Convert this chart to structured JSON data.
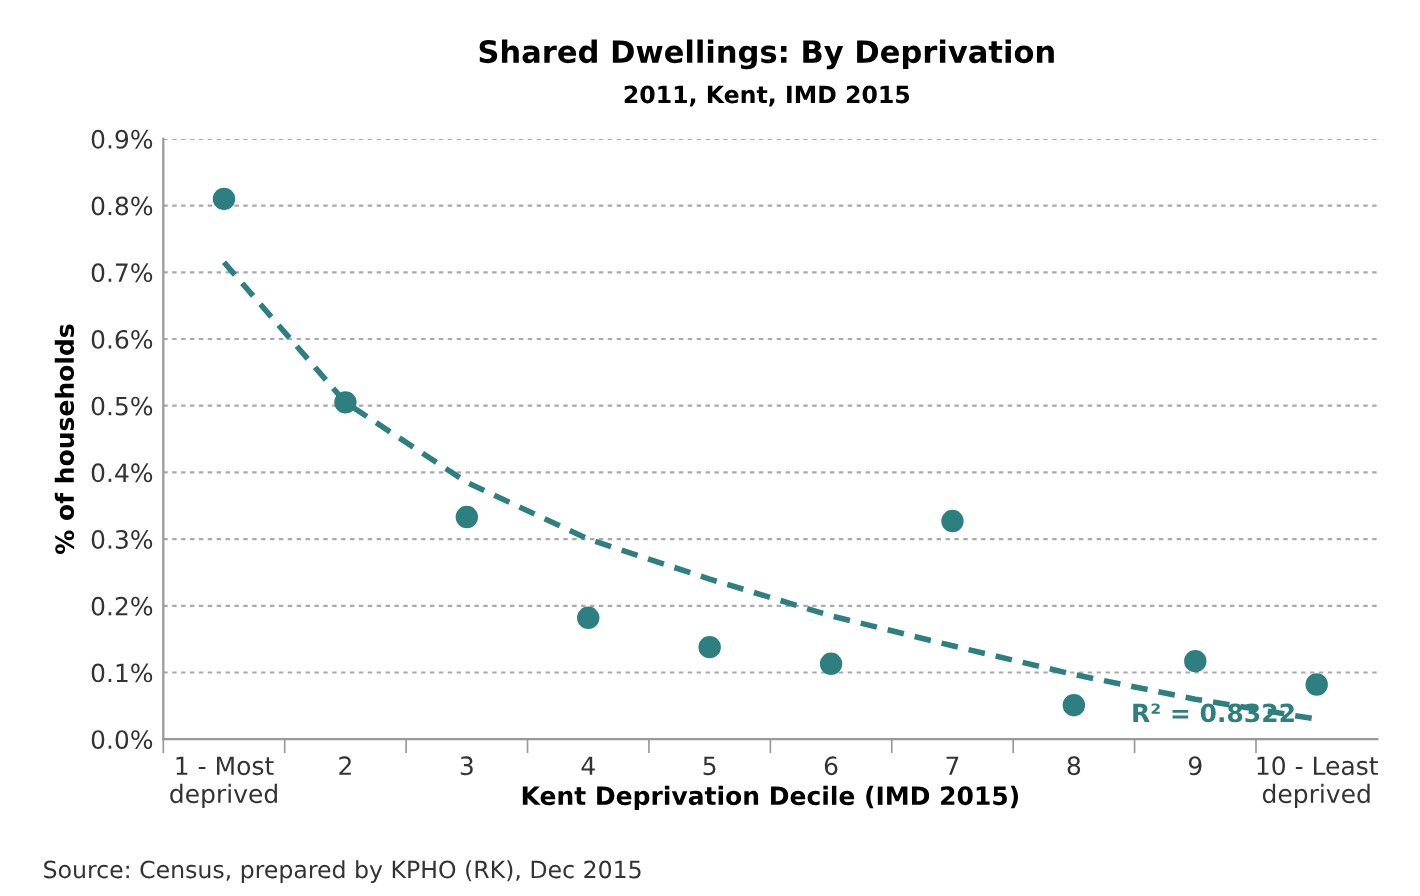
{
  "chart_data": {
    "type": "scatter",
    "title": "Shared Dwellings: By Deprivation",
    "subtitle": "2011, Kent, IMD 2015",
    "xlabel": "Kent Deprivation Decile (IMD 2015)",
    "ylabel": "% of households",
    "categories": [
      "1 - Most\ndeprived",
      "2",
      "3",
      "4",
      "5",
      "6",
      "7",
      "8",
      "9",
      "10 - Least\ndeprived"
    ],
    "series": [
      {
        "color": "#2e7f80",
        "marker": "circle",
        "values": [
          0.81,
          0.505,
          0.333,
          0.182,
          0.138,
          0.113,
          0.327,
          0.051,
          0.117,
          0.082
        ]
      },
      {
        "type": "line",
        "color": "#2e7f80",
        "line_style": "dashed",
        "marker": "none",
        "values": [
          0.715,
          0.505,
          0.385,
          0.3,
          0.24,
          0.185,
          0.14,
          0.097,
          0.06,
          0.03
        ]
      }
    ],
    "ylim": [
      0,
      0.9
    ],
    "yticks": [
      {
        "value": 0,
        "label": "0.0%"
      },
      {
        "value": 0.1,
        "label": "0.1%"
      },
      {
        "value": 0.2,
        "label": "0.2%"
      },
      {
        "value": 0.3,
        "label": "0.3%"
      },
      {
        "value": 0.4,
        "label": "0.4%"
      },
      {
        "value": 0.5,
        "label": "0.5%"
      },
      {
        "value": 0.6,
        "label": "0.6%"
      },
      {
        "value": 0.7,
        "label": "0.7%"
      },
      {
        "value": 0.8,
        "label": "0.8%"
      },
      {
        "value": 0.9,
        "label": "0.9%"
      }
    ],
    "grid": "y",
    "legend": false,
    "annotations": [
      "R² = 0.8322",
      "Source: Census, prepared by KPHO (RK), Dec 2015"
    ]
  }
}
